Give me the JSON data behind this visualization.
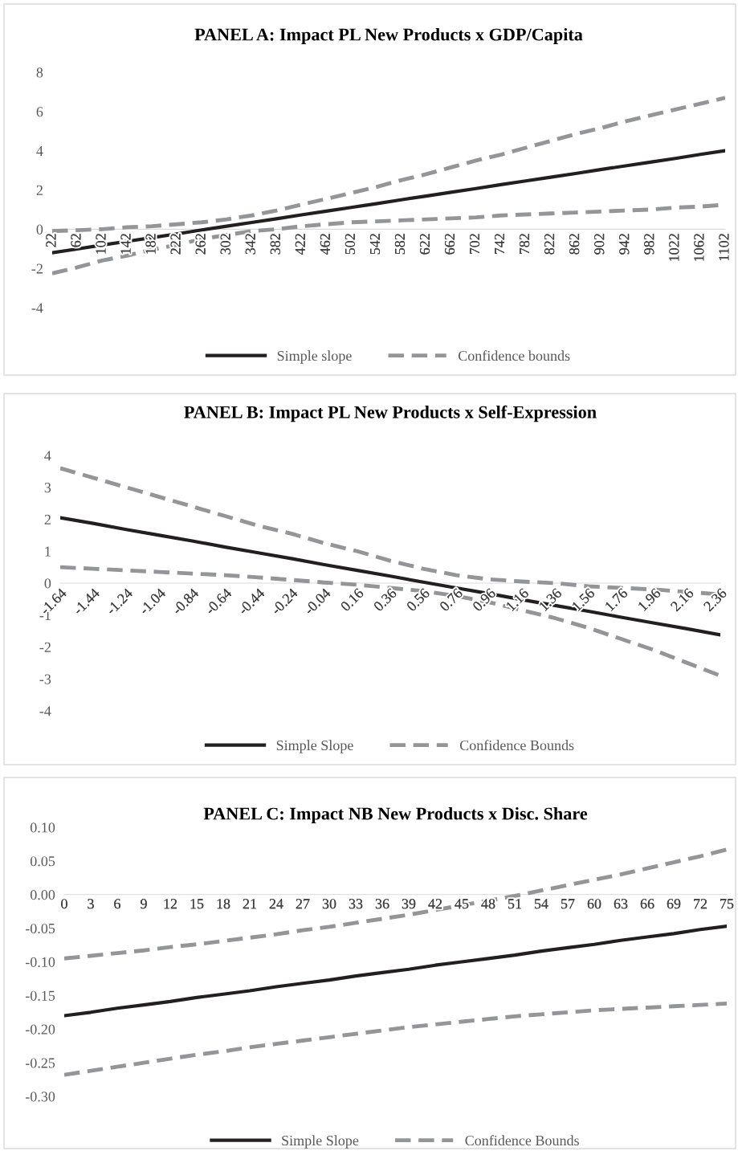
{
  "chart_data": [
    {
      "type": "line",
      "title": "PANEL A: Impact PL New Products x GDP/Capita",
      "categories": [
        "22",
        "62",
        "102",
        "142",
        "182",
        "222",
        "262",
        "302",
        "342",
        "382",
        "422",
        "462",
        "502",
        "542",
        "582",
        "622",
        "662",
        "702",
        "742",
        "782",
        "822",
        "862",
        "902",
        "942",
        "982",
        "1022",
        "1062",
        "1102"
      ],
      "series": [
        {
          "name": "Simple slope",
          "color": "#231f20",
          "line_style": "solid",
          "values": [
            -1.2,
            -1.01,
            -0.81,
            -0.62,
            -0.43,
            -0.24,
            -0.04,
            0.15,
            0.34,
            0.53,
            0.73,
            0.92,
            1.11,
            1.3,
            1.5,
            1.69,
            1.88,
            2.07,
            2.27,
            2.46,
            2.65,
            2.84,
            3.04,
            3.23,
            3.42,
            3.61,
            3.81,
            4.0
          ]
        },
        {
          "name": "Confidence bounds",
          "color": "#939598",
          "line_style": "dashed",
          "values": [
            -0.1,
            -0.05,
            0.0,
            0.1,
            0.15,
            0.25,
            0.35,
            0.5,
            0.7,
            0.95,
            1.25,
            1.55,
            1.85,
            2.15,
            2.5,
            2.8,
            3.15,
            3.5,
            3.8,
            4.15,
            4.5,
            4.85,
            5.15,
            5.5,
            5.8,
            6.1,
            6.4,
            6.7
          ]
        },
        {
          "color": "#939598",
          "line_style": "dashed",
          "values": [
            -2.25,
            -1.95,
            -1.6,
            -1.35,
            -1.05,
            -0.8,
            -0.5,
            -0.3,
            -0.1,
            0.0,
            0.15,
            0.25,
            0.35,
            0.4,
            0.45,
            0.5,
            0.55,
            0.6,
            0.7,
            0.75,
            0.8,
            0.85,
            0.9,
            0.95,
            1.0,
            1.1,
            1.15,
            1.25
          ]
        }
      ],
      "ylim": [
        -4,
        8
      ],
      "yticks": [
        -4,
        -2,
        0,
        2,
        4,
        6,
        8
      ],
      "legend": "bottom"
    },
    {
      "type": "line",
      "title": "PANEL B: Impact PL New Products x Self-Expression",
      "categories": [
        "-1.64",
        "-1.44",
        "-1.24",
        "-1.04",
        "-0.84",
        "-0.64",
        "-0.44",
        "-0.24",
        "-0.04",
        "0.16",
        "0.36",
        "0.56",
        "0.76",
        "0.96",
        "1.16",
        "1.36",
        "1.56",
        "1.76",
        "1.96",
        "2.16",
        "2.36"
      ],
      "series": [
        {
          "name": "Simple Slope",
          "color": "#231f20",
          "line_style": "solid",
          "values": [
            2.05,
            1.87,
            1.68,
            1.5,
            1.32,
            1.13,
            0.95,
            0.77,
            0.58,
            0.4,
            0.22,
            0.03,
            -0.15,
            -0.33,
            -0.52,
            -0.7,
            -0.88,
            -1.07,
            -1.25,
            -1.43,
            -1.62
          ]
        },
        {
          "name": "Confidence Bounds",
          "color": "#939598",
          "line_style": "dashed",
          "values": [
            3.6,
            3.3,
            3.0,
            2.7,
            2.4,
            2.1,
            1.8,
            1.55,
            1.25,
            1.0,
            0.7,
            0.45,
            0.25,
            0.12,
            0.05,
            0.0,
            -0.1,
            -0.15,
            -0.2,
            -0.28,
            -0.35
          ]
        },
        {
          "color": "#939598",
          "line_style": "dashed",
          "values": [
            0.5,
            0.45,
            0.4,
            0.35,
            0.3,
            0.25,
            0.18,
            0.1,
            0.02,
            -0.05,
            -0.15,
            -0.25,
            -0.4,
            -0.6,
            -0.85,
            -1.1,
            -1.4,
            -1.75,
            -2.1,
            -2.5,
            -2.9
          ]
        }
      ],
      "ylim": [
        -4,
        4
      ],
      "yticks": [
        -4,
        -3,
        -2,
        -1,
        0,
        1,
        2,
        3,
        4
      ],
      "legend": "bottom"
    },
    {
      "type": "line",
      "title": "PANEL C: Impact NB New Products x Disc. Share",
      "categories": [
        "0",
        "3",
        "6",
        "9",
        "12",
        "15",
        "18",
        "21",
        "24",
        "27",
        "30",
        "33",
        "36",
        "39",
        "42",
        "45",
        "48",
        "51",
        "54",
        "57",
        "60",
        "63",
        "66",
        "69",
        "72",
        "75"
      ],
      "series": [
        {
          "name": "Simple Slope",
          "color": "#231f20",
          "line_style": "solid",
          "values": [
            -0.18,
            -0.175,
            -0.169,
            -0.164,
            -0.159,
            -0.153,
            -0.148,
            -0.143,
            -0.137,
            -0.132,
            -0.127,
            -0.121,
            -0.116,
            -0.111,
            -0.105,
            -0.1,
            -0.095,
            -0.09,
            -0.084,
            -0.079,
            -0.074,
            -0.068,
            -0.063,
            -0.058,
            -0.052,
            -0.047
          ]
        },
        {
          "name": "Confidence Bounds",
          "color": "#939598",
          "line_style": "dashed",
          "values": [
            -0.095,
            -0.091,
            -0.087,
            -0.083,
            -0.078,
            -0.074,
            -0.069,
            -0.064,
            -0.059,
            -0.053,
            -0.048,
            -0.042,
            -0.036,
            -0.03,
            -0.023,
            -0.016,
            -0.009,
            -0.002,
            0.006,
            0.014,
            0.022,
            0.03,
            0.039,
            0.048,
            0.057,
            0.067
          ]
        },
        {
          "color": "#939598",
          "line_style": "dashed",
          "values": [
            -0.268,
            -0.262,
            -0.256,
            -0.25,
            -0.244,
            -0.238,
            -0.233,
            -0.227,
            -0.222,
            -0.217,
            -0.212,
            -0.207,
            -0.202,
            -0.197,
            -0.193,
            -0.189,
            -0.185,
            -0.181,
            -0.178,
            -0.175,
            -0.172,
            -0.17,
            -0.168,
            -0.166,
            -0.164,
            -0.162
          ]
        }
      ],
      "ylim": [
        -0.3,
        0.1
      ],
      "yticks": [
        {
          "value": -0.3,
          "label": "-0.30"
        },
        {
          "value": -0.25,
          "label": "-0.25"
        },
        {
          "value": -0.2,
          "label": "-0.20"
        },
        {
          "value": -0.15,
          "label": "-0.15"
        },
        {
          "value": -0.1,
          "label": "-0.10"
        },
        {
          "value": -0.05,
          "label": "-0.05"
        },
        {
          "value": 0,
          "label": "0.00"
        },
        {
          "value": 0.05,
          "label": "0.05"
        },
        {
          "value": 0.1,
          "label": "0.10"
        }
      ],
      "legend": "bottom"
    }
  ]
}
